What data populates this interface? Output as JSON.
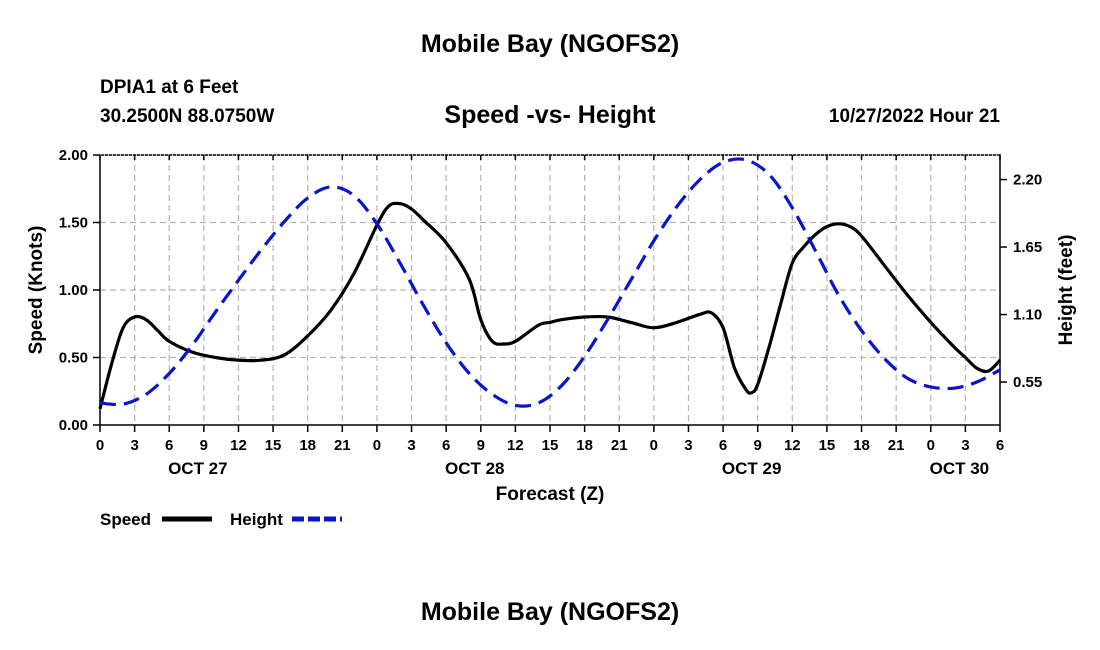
{
  "header": {
    "title": "Mobile Bay (NGOFS2)",
    "station": "DPIA1 at 6 Feet",
    "coords": "30.2500N  88.0750W",
    "subtitle": "Speed -vs- Height",
    "datetime": "10/27/2022 Hour 21"
  },
  "footer": {
    "title": "Mobile Bay (NGOFS2)"
  },
  "colors": {
    "speed": "#000000",
    "height": "#0a14c8",
    "grid": "#b4b4b4"
  },
  "chart_data": {
    "type": "line",
    "xlabel": "Forecast (Z)",
    "ylabel": "Speed (Knots)",
    "y2label": "Height (feet)",
    "x_range_hours": [
      0,
      78
    ],
    "ylim": [
      0,
      2.0
    ],
    "y2lim": [
      0.2,
      2.4
    ],
    "y_ticks": [
      "0.00",
      "0.50",
      "1.00",
      "1.50",
      "2.00"
    ],
    "y2_ticks": [
      "0.55",
      "1.10",
      "1.65",
      "2.20"
    ],
    "x_tick_labels": [
      "0",
      "3",
      "6",
      "9",
      "12",
      "15",
      "18",
      "21",
      "0",
      "3",
      "6",
      "9",
      "12",
      "15",
      "18",
      "21",
      "0",
      "3",
      "6",
      "9",
      "12",
      "15",
      "18",
      "21",
      "0",
      "3",
      "6"
    ],
    "date_labels": [
      {
        "hour": 9,
        "label": "OCT 27"
      },
      {
        "hour": 33,
        "label": "OCT 28"
      },
      {
        "hour": 57,
        "label": "OCT 29"
      },
      {
        "hour": 75,
        "label": "OCT 30"
      }
    ],
    "legend": [
      {
        "name": "Speed",
        "style": "solid"
      },
      {
        "name": "Height",
        "style": "dashed"
      }
    ],
    "series": [
      {
        "name": "Speed",
        "units": "Knots",
        "axis": "left",
        "x": [
          0,
          1,
          2,
          3,
          4,
          5,
          6,
          8,
          10,
          12,
          14,
          16,
          18,
          20,
          22,
          24,
          25,
          26,
          27,
          28,
          30,
          32,
          33,
          34,
          35,
          36,
          38,
          39,
          40,
          42,
          44,
          46,
          48,
          50,
          52,
          53,
          54,
          55,
          56,
          56.5,
          57,
          58,
          59,
          60,
          61,
          62,
          63,
          64,
          65,
          66,
          68,
          70,
          72,
          74,
          75,
          76,
          77,
          78
        ],
        "values": [
          0.12,
          0.45,
          0.72,
          0.8,
          0.78,
          0.7,
          0.62,
          0.54,
          0.5,
          0.48,
          0.48,
          0.52,
          0.66,
          0.85,
          1.12,
          1.48,
          1.62,
          1.64,
          1.6,
          1.52,
          1.35,
          1.08,
          0.78,
          0.62,
          0.6,
          0.62,
          0.74,
          0.76,
          0.78,
          0.8,
          0.8,
          0.76,
          0.72,
          0.76,
          0.82,
          0.83,
          0.72,
          0.42,
          0.26,
          0.24,
          0.3,
          0.58,
          0.9,
          1.2,
          1.32,
          1.41,
          1.47,
          1.49,
          1.47,
          1.4,
          1.18,
          0.96,
          0.76,
          0.58,
          0.5,
          0.42,
          0.4,
          0.48
        ]
      },
      {
        "name": "Height",
        "units": "feet",
        "axis": "right",
        "x": [
          0,
          2,
          4,
          6,
          8,
          10,
          12,
          14,
          16,
          18,
          20,
          22,
          24,
          26,
          28,
          30,
          32,
          34,
          36,
          38,
          40,
          42,
          44,
          46,
          48,
          50,
          52,
          54,
          56,
          58,
          60,
          62,
          64,
          66,
          68,
          70,
          72,
          74,
          76,
          78
        ],
        "values": [
          0.38,
          0.37,
          0.45,
          0.62,
          0.85,
          1.12,
          1.38,
          1.63,
          1.86,
          2.05,
          2.14,
          2.07,
          1.84,
          1.52,
          1.18,
          0.87,
          0.62,
          0.45,
          0.36,
          0.38,
          0.52,
          0.76,
          1.06,
          1.38,
          1.7,
          1.98,
          2.2,
          2.34,
          2.36,
          2.24,
          1.97,
          1.62,
          1.26,
          0.97,
          0.74,
          0.58,
          0.51,
          0.5,
          0.55,
          0.65
        ]
      }
    ]
  }
}
